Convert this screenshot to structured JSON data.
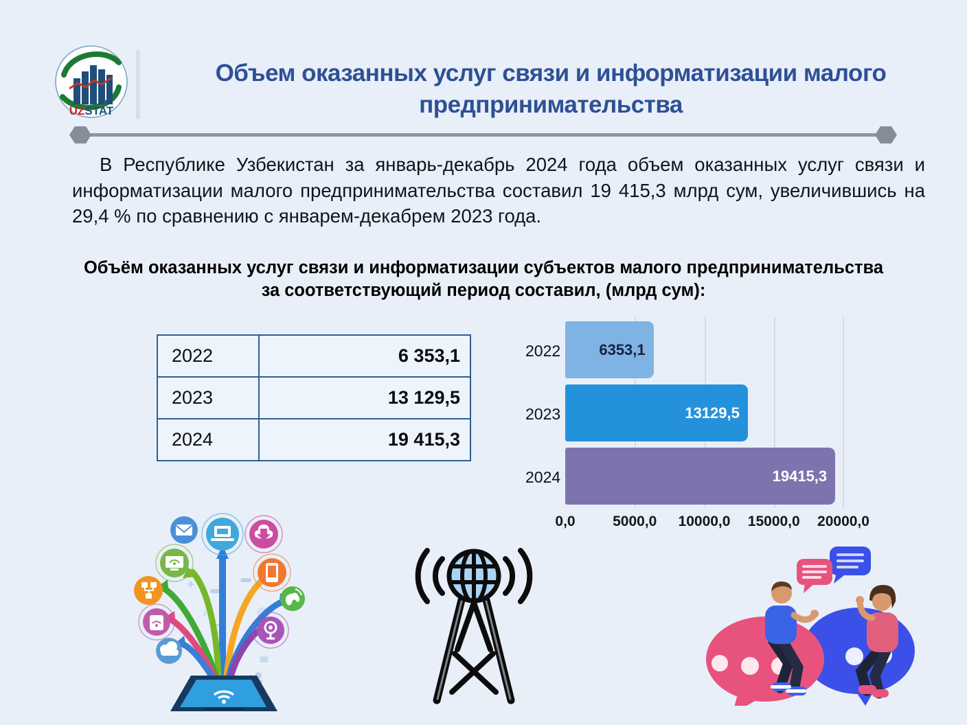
{
  "header": {
    "logo": {
      "uz": "UZ",
      "stat": "STAT"
    },
    "title_line1": "Объем оказанных услуг связи и информатизации малого",
    "title_line2": "предпринимательства"
  },
  "intro": "В Республике Узбекистан за январь-декабрь 2024 года объем оказанных услуг связи и информатизации малого предпринимательства составил 19 415,3 млрд сум, увеличившись на 29,4 % по сравнению с январем-декабрем 2023 года.",
  "subtitle_line1": "Объём оказанных услуг связи и информатизации субъектов малого предпринимательства",
  "subtitle_line2": "за соответствующий период составил, (млрд сум):",
  "table": {
    "rows": [
      {
        "year": "2022",
        "value": "6 353,1"
      },
      {
        "year": "2023",
        "value": "13 129,5"
      },
      {
        "year": "2024",
        "value": "19 415,3"
      }
    ]
  },
  "chart_data": {
    "type": "bar",
    "orientation": "horizontal",
    "categories": [
      "2022",
      "2023",
      "2024"
    ],
    "values": [
      6353.1,
      13129.5,
      19415.3
    ],
    "value_labels": [
      "6353,1",
      "13129,5",
      "19415,3"
    ],
    "colors": [
      "#7fb3e3",
      "#2492db",
      "#7d74ae"
    ],
    "value_label_colors": [
      "#16213e",
      "#ffffff",
      "#ffffff"
    ],
    "xlim": [
      0,
      20000
    ],
    "xticks": [
      0,
      5000,
      10000,
      15000,
      20000
    ],
    "xtick_labels": [
      "0,0",
      "5000,0",
      "10000,0",
      "15000,0",
      "20000,0"
    ],
    "unit": "млрд сум",
    "grid": true,
    "legend": "none",
    "title": ""
  },
  "colors": {
    "background": "#e9eff8",
    "title_blue": "#2e5096",
    "table_border": "#2d5e93",
    "rule_gray": "#8f959f"
  },
  "icons": {
    "logo": "uzstat-logo",
    "tree": "digital-services-tree-illustration",
    "tower": "radio-tower-globe-icon",
    "people": "people-on-chat-bubbles-illustration"
  }
}
